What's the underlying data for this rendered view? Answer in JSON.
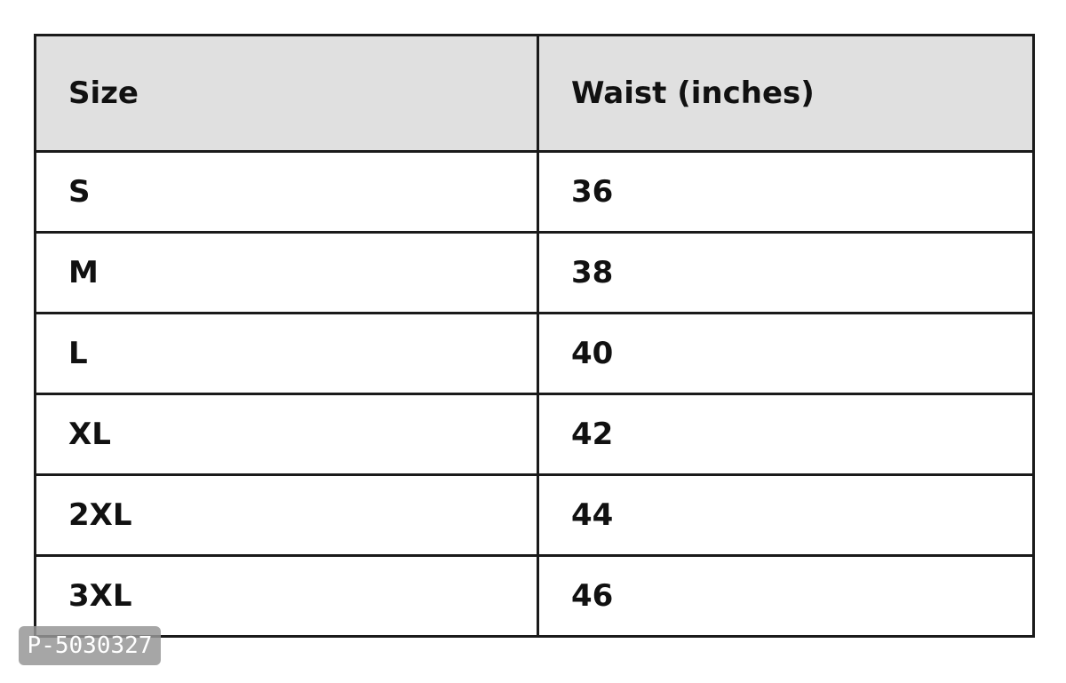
{
  "table": {
    "header": [
      "Size",
      "Waist (inches)"
    ],
    "rows": [
      [
        "S",
        "36"
      ],
      [
        "M",
        "38"
      ],
      [
        "L",
        "40"
      ],
      [
        "XL",
        "42"
      ],
      [
        "2XL",
        "44"
      ],
      [
        "3XL",
        "46"
      ]
    ]
  },
  "watermark": "P-5030327"
}
